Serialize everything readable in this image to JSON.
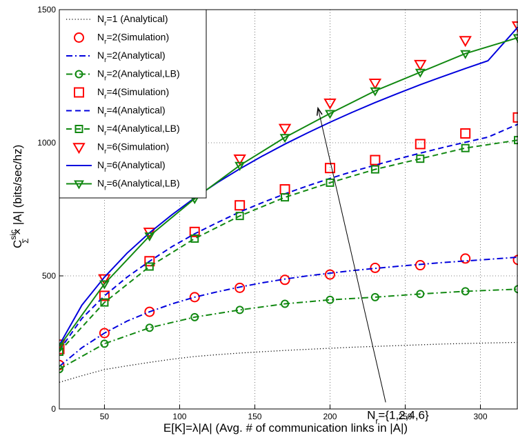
{
  "chart_data": {
    "type": "line",
    "title": "",
    "xlabel": "E[K]=λ|A| (Avg. # of communication links in |A|)",
    "ylabel_main": "C",
    "ylabel_sup": "sic",
    "ylabel_sub": "Σ",
    "ylabel_rest": " × |A| (bits/sec/hz)",
    "xlim": [
      20,
      325
    ],
    "ylim": [
      0,
      1500
    ],
    "xticks": [
      50,
      100,
      150,
      200,
      250,
      300
    ],
    "yticks": [
      0,
      500,
      1000,
      1500
    ],
    "grid": true,
    "legend_position": "top-left",
    "annotation": {
      "text_main": "N",
      "text_sub": "r",
      "text_rest": "={1,2,4,6}",
      "arrow_from": [
        237,
        25
      ],
      "arrow_to": [
        192,
        1130
      ]
    },
    "series": [
      {
        "name": "N_r=1 (Analytical)",
        "label_main": "N",
        "label_sub": "r",
        "label_rest": "=1 (Analytical)",
        "color": "#000000",
        "style": "dotted",
        "marker": "none",
        "x": [
          20,
          35,
          50,
          65,
          80,
          95,
          110,
          125,
          140,
          155,
          170,
          185,
          200,
          215,
          230,
          245,
          260,
          275,
          290,
          305,
          325
        ],
        "y": [
          100,
          125,
          148,
          162,
          175,
          187,
          197,
          204,
          210,
          215,
          220,
          224,
          228,
          232,
          235,
          238,
          241,
          244,
          246,
          248,
          250
        ]
      },
      {
        "name": "N_r=2(Simulation)",
        "label_main": "N",
        "label_sub": "r",
        "label_rest": "=2(Simulation)",
        "color": "#ff0000",
        "style": "none",
        "marker": "circle",
        "x": [
          20,
          50,
          80,
          110,
          140,
          170,
          200,
          230,
          260,
          290,
          325
        ],
        "y": [
          165,
          285,
          365,
          420,
          455,
          485,
          505,
          530,
          540,
          565,
          560
        ]
      },
      {
        "name": "N_r=2(Analytical)",
        "label_main": "N",
        "label_sub": "r",
        "label_rest": "=2(Analytical)",
        "color": "#0000dd",
        "style": "dashdot",
        "marker": "none",
        "x": [
          20,
          35,
          50,
          65,
          80,
          95,
          110,
          125,
          140,
          155,
          170,
          185,
          200,
          215,
          230,
          245,
          260,
          275,
          290,
          305,
          325
        ],
        "y": [
          160,
          230,
          285,
          330,
          365,
          395,
          420,
          440,
          458,
          474,
          488,
          500,
          510,
          520,
          528,
          536,
          543,
          550,
          556,
          562,
          570
        ]
      },
      {
        "name": "N_r=2(Analytical,LB)",
        "label_main": "N",
        "label_sub": "r",
        "label_rest": "=2(Analytical,LB)",
        "color": "#118811",
        "style": "dashdot",
        "marker": "circle",
        "x": [
          20,
          50,
          80,
          110,
          140,
          170,
          200,
          230,
          260,
          290,
          325
        ],
        "y": [
          150,
          245,
          305,
          345,
          372,
          395,
          410,
          420,
          432,
          442,
          450
        ]
      },
      {
        "name": "N_r=4(Simulation)",
        "label_main": "N",
        "label_sub": "r",
        "label_rest": "=4(Simulation)",
        "color": "#ff0000",
        "style": "none",
        "marker": "square",
        "x": [
          20,
          50,
          80,
          110,
          140,
          170,
          200,
          230,
          260,
          290,
          325
        ],
        "y": [
          225,
          425,
          555,
          665,
          765,
          825,
          905,
          935,
          995,
          1035,
          1095
        ]
      },
      {
        "name": "N_r=4(Analytical)",
        "label_main": "N",
        "label_sub": "r",
        "label_rest": "=4(Analytical)",
        "color": "#0000dd",
        "style": "dashed",
        "marker": "none",
        "x": [
          20,
          35,
          50,
          65,
          80,
          95,
          110,
          125,
          140,
          155,
          170,
          185,
          200,
          215,
          230,
          245,
          260,
          275,
          290,
          305,
          325
        ],
        "y": [
          220,
          340,
          425,
          495,
          555,
          610,
          658,
          700,
          740,
          775,
          808,
          838,
          866,
          892,
          916,
          939,
          961,
          982,
          1002,
          1021,
          1070
        ]
      },
      {
        "name": "N_r=4(Analytical,LB)",
        "label_main": "N",
        "label_sub": "r",
        "label_rest": "=4(Analytical,LB)",
        "color": "#118811",
        "style": "dashed",
        "marker": "square",
        "x": [
          20,
          50,
          80,
          110,
          140,
          170,
          200,
          230,
          260,
          290,
          325
        ],
        "y": [
          215,
          400,
          535,
          640,
          725,
          795,
          850,
          900,
          940,
          980,
          1010
        ]
      },
      {
        "name": "N_r=6(Simulation)",
        "label_main": "N",
        "label_sub": "r",
        "label_rest": "=6(Simulation)",
        "color": "#ff0000",
        "style": "none",
        "marker": "triangle-down",
        "x": [
          20,
          50,
          80,
          110,
          140,
          170,
          200,
          230,
          260,
          290,
          325
        ],
        "y": [
          245,
          490,
          665,
          810,
          940,
          1055,
          1150,
          1225,
          1295,
          1385,
          1440
        ]
      },
      {
        "name": "N_r=6(Analytical)",
        "label_main": "N",
        "label_sub": "r",
        "label_rest": "=6(Analytical)",
        "color": "#0000dd",
        "style": "solid",
        "marker": "none",
        "x": [
          20,
          35,
          50,
          65,
          80,
          95,
          110,
          125,
          140,
          155,
          170,
          185,
          200,
          215,
          230,
          245,
          260,
          275,
          290,
          305,
          325
        ],
        "y": [
          240,
          390,
          495,
          585,
          662,
          730,
          793,
          850,
          902,
          950,
          995,
          1037,
          1077,
          1115,
          1151,
          1185,
          1218,
          1249,
          1279,
          1308,
          1435
        ]
      },
      {
        "name": "N_r=6(Analytical,LB)",
        "label_main": "N",
        "label_sub": "r",
        "label_rest": "=6(Analytical,LB)",
        "color": "#118811",
        "style": "solid",
        "marker": "triangle-down",
        "x": [
          20,
          50,
          80,
          110,
          140,
          170,
          200,
          230,
          260,
          290,
          325
        ],
        "y": [
          235,
          470,
          650,
          790,
          915,
          1020,
          1110,
          1195,
          1265,
          1335,
          1395
        ]
      }
    ]
  }
}
